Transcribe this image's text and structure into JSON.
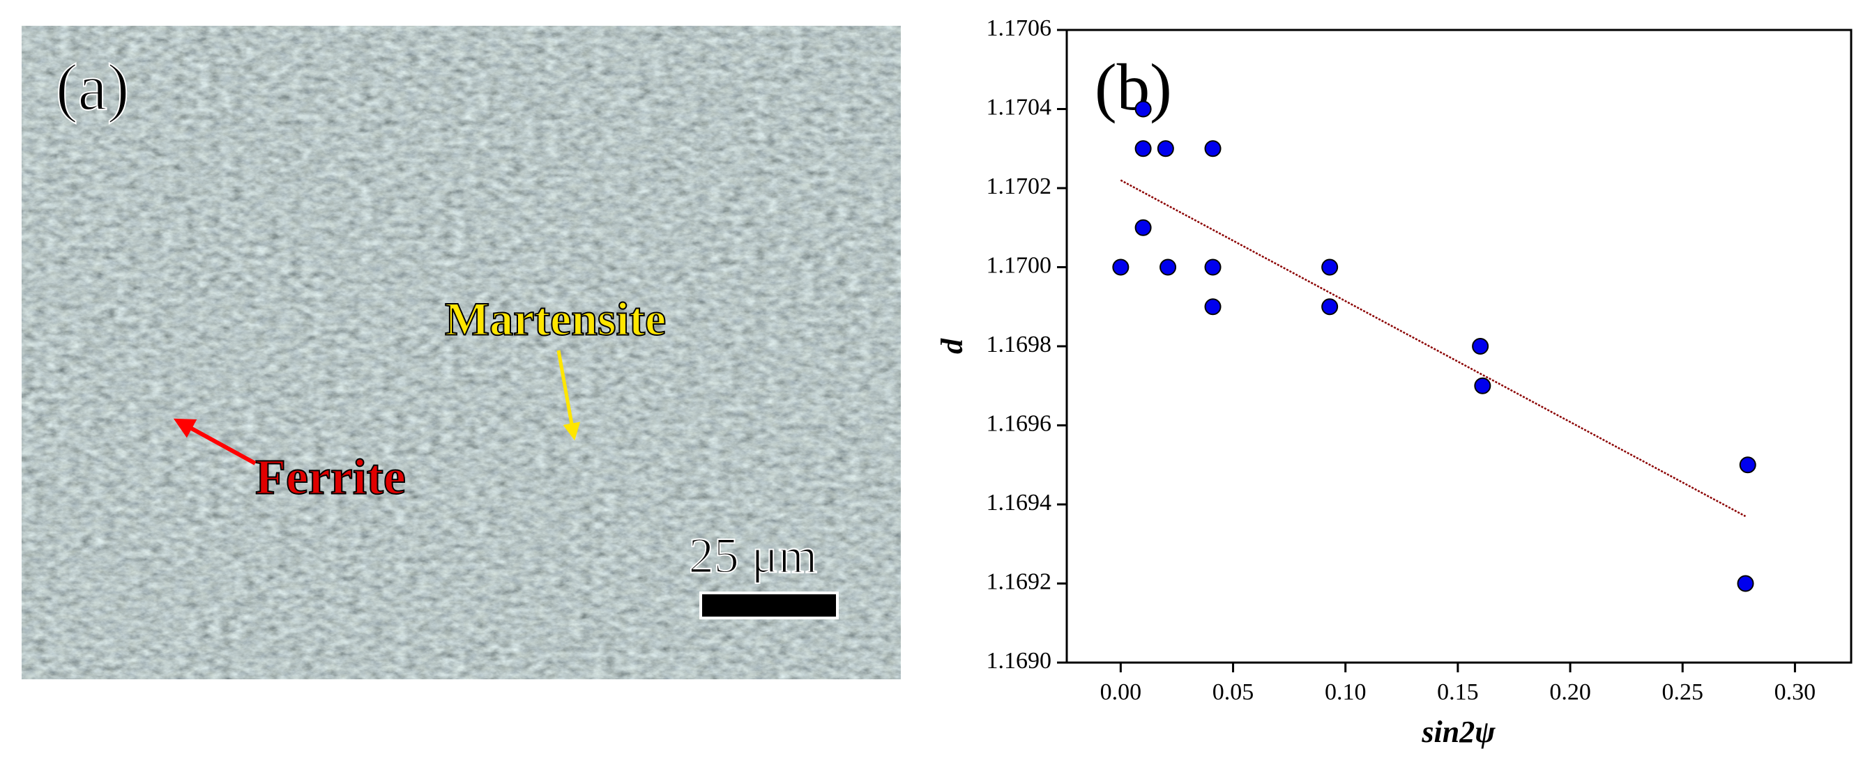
{
  "micrograph": {
    "panel_label": "(a)",
    "martensite_label": "Martensite",
    "ferrite_label": "Ferrite",
    "scale_bar_label": "25 μm"
  },
  "chart_data": {
    "type": "scatter",
    "panel_label": "(b)",
    "y_label": "d",
    "x_label": "sin2ψ",
    "x": [
      0.0,
      0.01,
      0.01,
      0.02,
      0.01,
      0.021,
      0.041,
      0.041,
      0.041,
      0.093,
      0.093,
      0.16,
      0.161,
      0.279,
      0.278
    ],
    "values": [
      1.17,
      1.1704,
      1.1703,
      1.1703,
      1.1701,
      1.17,
      1.1703,
      1.17,
      1.1699,
      1.17,
      1.1699,
      1.1698,
      1.1697,
      1.1695,
      1.1692
    ],
    "color": "#0000ee",
    "fit": {
      "x": [
        0.0,
        0.278
      ],
      "y": [
        1.17022,
        1.16937
      ],
      "color": "#8b0000"
    },
    "xlim": [
      -0.024,
      0.325
    ],
    "ylim": [
      1.169,
      1.1706
    ],
    "xticks": [
      {
        "value": 0,
        "label": "0.00"
      },
      0.05,
      {
        "value": 0.1,
        "label": "0.10"
      },
      0.15,
      {
        "value": 0.2,
        "label": "0.20"
      },
      0.25,
      {
        "value": 0.3,
        "label": "0.30"
      }
    ],
    "yticks": [
      {
        "value": 1.169,
        "label": "1.1690"
      },
      1.1692,
      1.1694,
      1.1696,
      1.1698,
      {
        "value": 1.17,
        "label": "1.1700"
      },
      1.1702,
      1.1704,
      1.1706
    ],
    "grid": false
  }
}
